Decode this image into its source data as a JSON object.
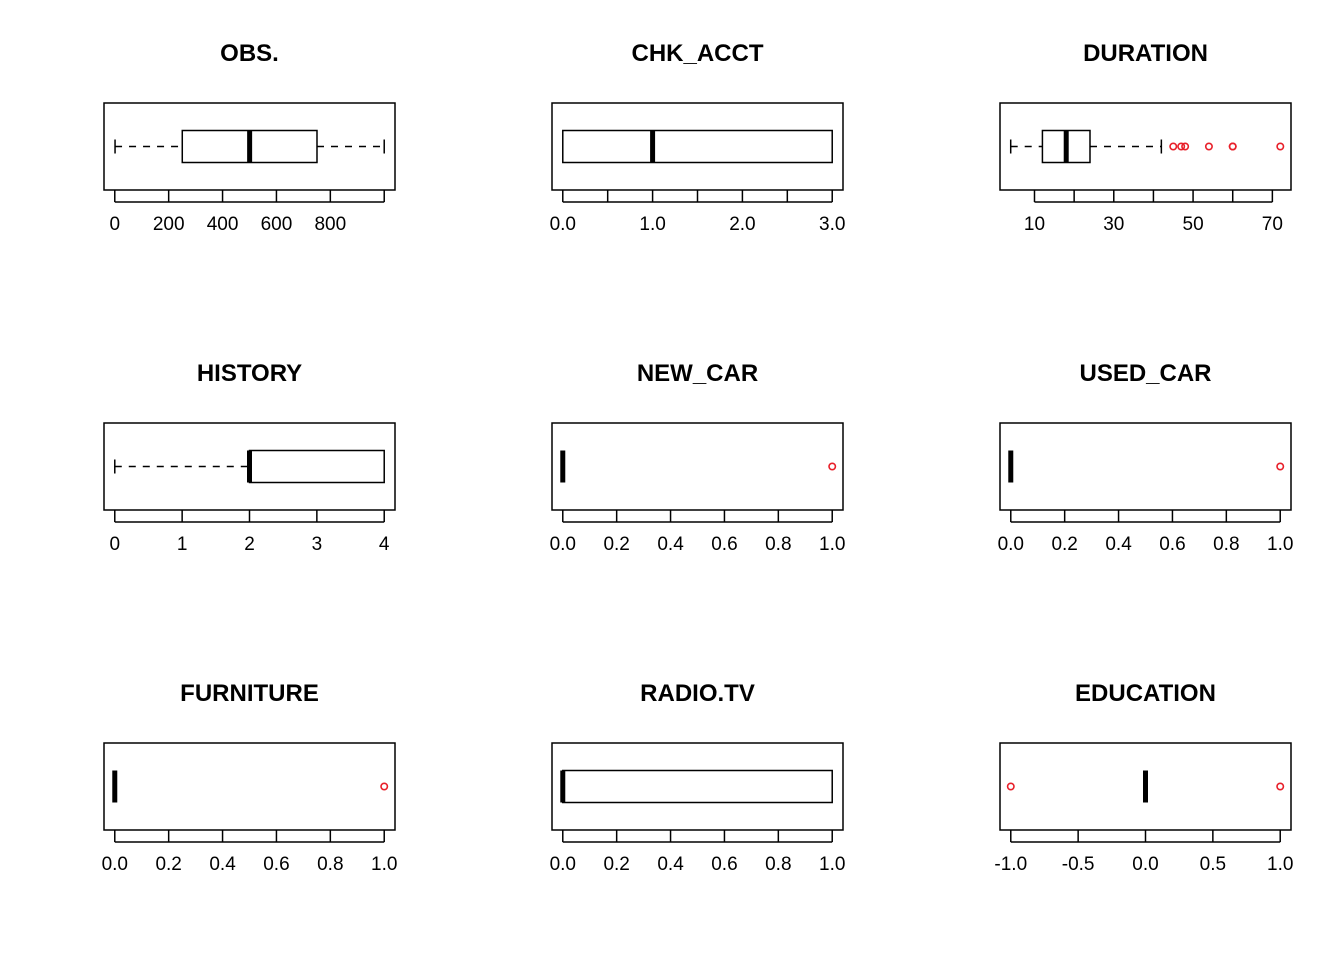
{
  "outlier_color": "#e8202a",
  "chart_data": [
    {
      "type": "boxplot",
      "orientation": "horizontal",
      "title": "OBS.",
      "xlim": [
        -40,
        1040
      ],
      "ticks": [
        0,
        200,
        400,
        600,
        800,
        1000
      ],
      "tick_labels": [
        "0",
        "200",
        "400",
        "600",
        "800",
        ""
      ],
      "stats": {
        "whisker_low": 1,
        "q1": 250.5,
        "median": 500.5,
        "q3": 750.5,
        "whisker_high": 1000
      },
      "outliers": []
    },
    {
      "type": "boxplot",
      "orientation": "horizontal",
      "title": "CHK_ACCT",
      "xlim": [
        -0.12,
        3.12
      ],
      "ticks": [
        0,
        0.5,
        1,
        1.5,
        2,
        2.5,
        3
      ],
      "tick_labels": [
        "0.0",
        "",
        "1.0",
        "",
        "2.0",
        "",
        "3.0"
      ],
      "stats": {
        "whisker_low": 0,
        "q1": 0,
        "median": 1,
        "q3": 3,
        "whisker_high": 3
      },
      "outliers": []
    },
    {
      "type": "boxplot",
      "orientation": "horizontal",
      "title": "DURATION",
      "xlim": [
        1.3,
        74.7
      ],
      "ticks": [
        10,
        20,
        30,
        40,
        50,
        60,
        70
      ],
      "tick_labels": [
        "10",
        "",
        "30",
        "",
        "50",
        "",
        "70"
      ],
      "stats": {
        "whisker_low": 4,
        "q1": 12,
        "median": 18,
        "q3": 24,
        "whisker_high": 42
      },
      "outliers": [
        45,
        47,
        48,
        54,
        60,
        60,
        72
      ]
    },
    {
      "type": "boxplot",
      "orientation": "horizontal",
      "title": "HISTORY",
      "xlim": [
        -0.16,
        4.16
      ],
      "ticks": [
        0,
        1,
        2,
        3,
        4
      ],
      "tick_labels": [
        "0",
        "1",
        "2",
        "3",
        "4"
      ],
      "stats": {
        "whisker_low": 0,
        "q1": 2,
        "median": 2,
        "q3": 4,
        "whisker_high": 4
      },
      "outliers": []
    },
    {
      "type": "boxplot",
      "orientation": "horizontal",
      "title": "NEW_CAR",
      "xlim": [
        -0.04,
        1.04
      ],
      "ticks": [
        0,
        0.2,
        0.4,
        0.6,
        0.8,
        1
      ],
      "tick_labels": [
        "0.0",
        "0.2",
        "0.4",
        "0.6",
        "0.8",
        "1.0"
      ],
      "stats": {
        "whisker_low": 0,
        "q1": 0,
        "median": 0,
        "q3": 0,
        "whisker_high": 0
      },
      "outliers": [
        1
      ]
    },
    {
      "type": "boxplot",
      "orientation": "horizontal",
      "title": "USED_CAR",
      "xlim": [
        -0.04,
        1.04
      ],
      "ticks": [
        0,
        0.2,
        0.4,
        0.6,
        0.8,
        1
      ],
      "tick_labels": [
        "0.0",
        "0.2",
        "0.4",
        "0.6",
        "0.8",
        "1.0"
      ],
      "stats": {
        "whisker_low": 0,
        "q1": 0,
        "median": 0,
        "q3": 0,
        "whisker_high": 0
      },
      "outliers": [
        1
      ]
    },
    {
      "type": "boxplot",
      "orientation": "horizontal",
      "title": "FURNITURE",
      "xlim": [
        -0.04,
        1.04
      ],
      "ticks": [
        0,
        0.2,
        0.4,
        0.6,
        0.8,
        1
      ],
      "tick_labels": [
        "0.0",
        "0.2",
        "0.4",
        "0.6",
        "0.8",
        "1.0"
      ],
      "stats": {
        "whisker_low": 0,
        "q1": 0,
        "median": 0,
        "q3": 0,
        "whisker_high": 0
      },
      "outliers": [
        1
      ]
    },
    {
      "type": "boxplot",
      "orientation": "horizontal",
      "title": "RADIO.TV",
      "xlim": [
        -0.04,
        1.04
      ],
      "ticks": [
        0,
        0.2,
        0.4,
        0.6,
        0.8,
        1
      ],
      "tick_labels": [
        "0.0",
        "0.2",
        "0.4",
        "0.6",
        "0.8",
        "1.0"
      ],
      "stats": {
        "whisker_low": 0,
        "q1": 0,
        "median": 0,
        "q3": 1,
        "whisker_high": 1
      },
      "outliers": []
    },
    {
      "type": "boxplot",
      "orientation": "horizontal",
      "title": "EDUCATION",
      "xlim": [
        -1.08,
        1.08
      ],
      "ticks": [
        -1,
        -0.5,
        0,
        0.5,
        1
      ],
      "tick_labels": [
        "-1.0",
        "-0.5",
        "0.0",
        "0.5",
        "1.0"
      ],
      "stats": {
        "whisker_low": 0,
        "q1": 0,
        "median": 0,
        "q3": 0,
        "whisker_high": 0
      },
      "outliers": [
        -1,
        1
      ]
    }
  ]
}
